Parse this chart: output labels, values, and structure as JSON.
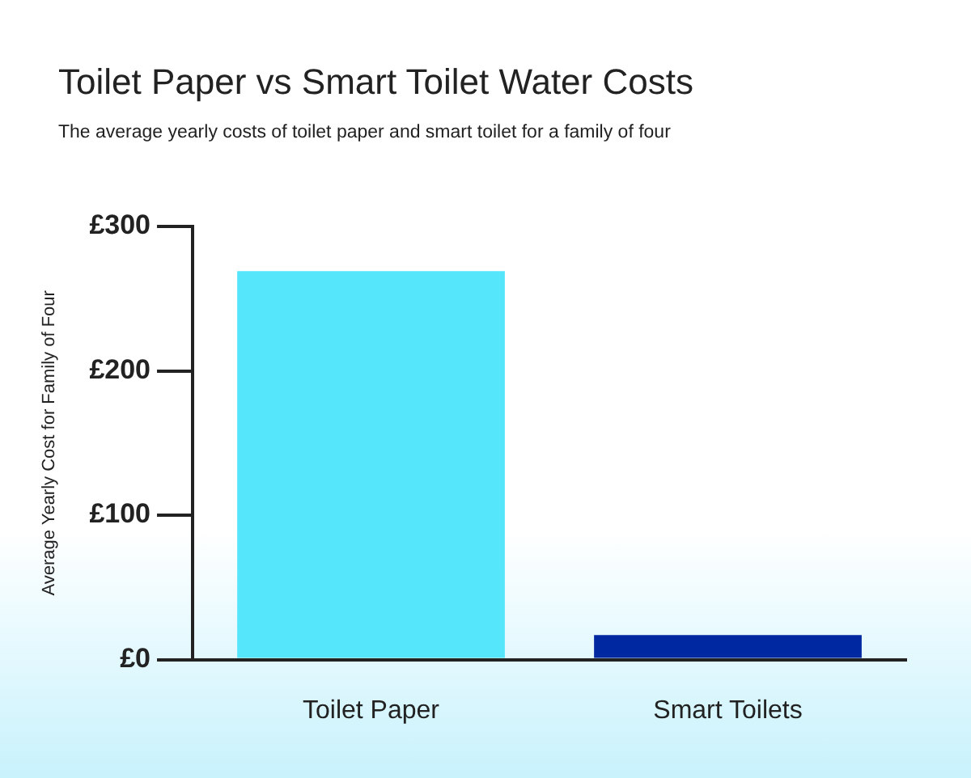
{
  "chart_data": {
    "type": "bar",
    "title": "Toilet Paper vs Smart Toilet Water Costs",
    "subtitle": "The average yearly costs of toilet paper and smart toilet for a family of four",
    "ylabel": "Average Yearly Cost for Family of Four",
    "categories": [
      "Toilet Paper",
      "Smart Toilets"
    ],
    "values": [
      269,
      17
    ],
    "colors": [
      "#55e6fc",
      "#0028a0"
    ],
    "ylim": [
      0,
      300
    ],
    "yticks": [
      {
        "value": 0,
        "label": "£0"
      },
      {
        "value": 100,
        "label": "£100"
      },
      {
        "value": 200,
        "label": "£200"
      },
      {
        "value": 300,
        "label": "£300"
      }
    ],
    "grid": false,
    "legend": false
  }
}
